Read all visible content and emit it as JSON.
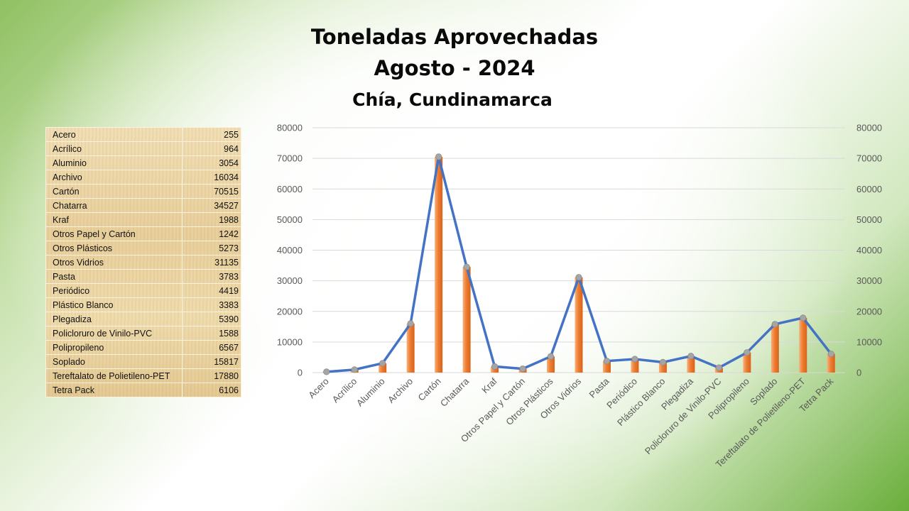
{
  "chart_data": {
    "type": "bar",
    "title": [
      "Toneladas Aprovechadas",
      "Agosto - 2024"
    ],
    "subtitle": "Chía, Cundinamarca",
    "categories": [
      "Acero",
      "Acrílico",
      "Aluminio",
      "Archivo",
      "Cartón",
      "Chatarra",
      "Kraf",
      "Otros Papel y Cartón",
      "Otros Plásticos",
      "Otros Vidrios",
      "Pasta",
      "Periódico",
      "Plástico Blanco",
      "Plegadiza",
      "Policloruro de Vinilo-PVC",
      "Polipropileno",
      "Soplado",
      "Tereftalato de Polietileno-PET",
      "Tetra Pack"
    ],
    "values": [
      255,
      964,
      3054,
      16034,
      70515,
      34527,
      1988,
      1242,
      5273,
      31135,
      3783,
      4419,
      3383,
      5390,
      1588,
      6567,
      15817,
      17880,
      6106
    ],
    "series_overlay": "line",
    "ylim": [
      0,
      80000
    ],
    "y2lim": [
      0,
      80000
    ],
    "yticks": [
      "0",
      "10000",
      "20000",
      "30000",
      "40000",
      "50000",
      "60000",
      "70000",
      "80000"
    ],
    "grid": true,
    "colors": {
      "bar": "#ed7d31",
      "bar_light": "#f7b07c",
      "line": "#4472c4",
      "marker": "#a5a5a5"
    }
  },
  "table": {
    "rows": [
      {
        "label": "Acero",
        "value": "255"
      },
      {
        "label": "Acrílico",
        "value": "964"
      },
      {
        "label": "Aluminio",
        "value": "3054"
      },
      {
        "label": "Archivo",
        "value": "16034"
      },
      {
        "label": "Cartón",
        "value": "70515"
      },
      {
        "label": "Chatarra",
        "value": "34527"
      },
      {
        "label": "Kraf",
        "value": "1988"
      },
      {
        "label": "Otros Papel y Cartón",
        "value": "1242"
      },
      {
        "label": "Otros Plásticos",
        "value": "5273"
      },
      {
        "label": "Otros Vidrios",
        "value": "31135"
      },
      {
        "label": "Pasta",
        "value": "3783"
      },
      {
        "label": "Periódico",
        "value": "4419"
      },
      {
        "label": "Plástico Blanco",
        "value": "3383"
      },
      {
        "label": "Plegadiza",
        "value": "5390"
      },
      {
        "label": "Policloruro de Vinilo-PVC",
        "value": "1588"
      },
      {
        "label": "Polipropileno",
        "value": "6567"
      },
      {
        "label": "Soplado",
        "value": "15817"
      },
      {
        "label": "Tereftalato de Polietileno-PET",
        "value": "17880"
      },
      {
        "label": "Tetra Pack",
        "value": "6106"
      }
    ]
  }
}
